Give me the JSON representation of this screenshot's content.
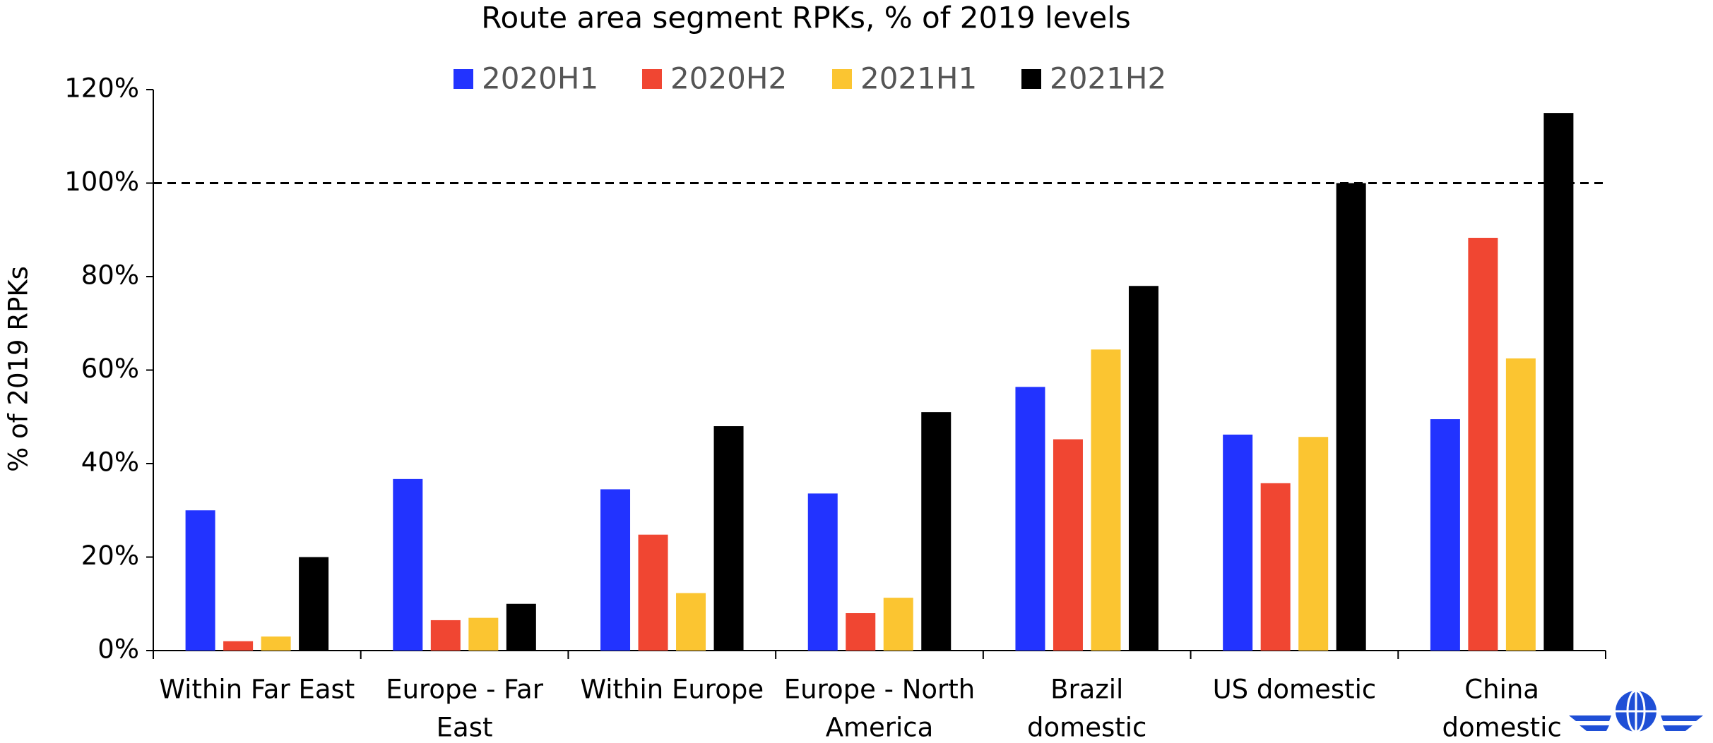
{
  "chart_data": {
    "type": "bar",
    "title": "Route area segment RPKs, % of 2019 levels",
    "ylabel": "% of 2019 RPKs",
    "categories": [
      [
        "Within Far East"
      ],
      [
        "Europe - Far",
        "East"
      ],
      [
        "Within Europe"
      ],
      [
        "Europe - North",
        "America"
      ],
      [
        "Brazil",
        "domestic"
      ],
      [
        "US domestic"
      ],
      [
        "China",
        "domestic"
      ]
    ],
    "series": [
      {
        "name": "2020H1",
        "color": "#2233ff",
        "values": [
          30,
          36.7,
          34.5,
          33.6,
          56.4,
          46.2,
          49.5
        ]
      },
      {
        "name": "2020H2",
        "color": "#f04632",
        "values": [
          2,
          6.5,
          24.8,
          8,
          45.2,
          35.8,
          88.3
        ]
      },
      {
        "name": "2021H1",
        "color": "#fbc531",
        "values": [
          3,
          7,
          12.3,
          11.3,
          64.4,
          45.7,
          62.5
        ]
      },
      {
        "name": "2021H2",
        "color": "#000000",
        "values": [
          20,
          10,
          48,
          51,
          78,
          100,
          115
        ]
      }
    ],
    "ylim": [
      0,
      120
    ],
    "yticks": [
      {
        "value": 0,
        "label": "0%"
      },
      {
        "value": 20,
        "label": "20%"
      },
      {
        "value": 40,
        "label": "40%"
      },
      {
        "value": 60,
        "label": "60%"
      },
      {
        "value": 80,
        "label": "80%"
      },
      {
        "value": 100,
        "label": "100%"
      },
      {
        "value": 120,
        "label": "120%"
      }
    ],
    "reference_line": 100,
    "grid": false,
    "legend": "top"
  }
}
